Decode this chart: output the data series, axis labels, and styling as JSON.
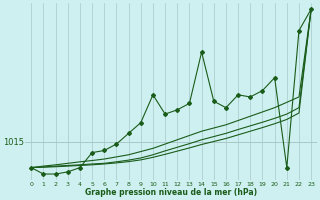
{
  "title": "Graphe pression niveau de la mer (hPa)",
  "background_color": "#cff0f0",
  "grid_color": "#a8c8c8",
  "line_color": "#1a5c1a",
  "xlim": [
    -0.5,
    23.5
  ],
  "ylim": [
    1013.2,
    1021.5
  ],
  "ytick_label": "1015",
  "ytick_value": 1015,
  "x_hourly": [
    0,
    1,
    2,
    3,
    4,
    5,
    6,
    7,
    8,
    9,
    10,
    11,
    12,
    13,
    14,
    15,
    16,
    17,
    18,
    19,
    20,
    21,
    22,
    23
  ],
  "series_main": [
    1013.8,
    1013.5,
    1013.5,
    1013.6,
    1013.8,
    1014.5,
    1014.6,
    1014.9,
    1015.4,
    1015.9,
    1017.2,
    1016.3,
    1016.5,
    1016.8,
    1019.2,
    1016.9,
    1016.6,
    1017.2,
    1017.1,
    1017.4,
    1018.0,
    1013.8,
    1020.2,
    1021.2
  ],
  "series_linear1": [
    1013.8,
    1013.87,
    1013.93,
    1014.0,
    1014.07,
    1014.13,
    1014.2,
    1014.3,
    1014.4,
    1014.55,
    1014.7,
    1014.9,
    1015.1,
    1015.3,
    1015.5,
    1015.65,
    1015.8,
    1016.0,
    1016.2,
    1016.4,
    1016.6,
    1016.85,
    1017.1,
    1021.2
  ],
  "series_linear2": [
    1013.8,
    1013.83,
    1013.87,
    1013.9,
    1013.93,
    1013.97,
    1014.0,
    1014.07,
    1014.15,
    1014.25,
    1014.4,
    1014.58,
    1014.75,
    1014.92,
    1015.1,
    1015.25,
    1015.4,
    1015.58,
    1015.75,
    1015.92,
    1016.1,
    1016.3,
    1016.6,
    1021.2
  ],
  "series_linear3": [
    1013.8,
    1013.82,
    1013.84,
    1013.87,
    1013.9,
    1013.93,
    1013.97,
    1014.02,
    1014.08,
    1014.16,
    1014.28,
    1014.42,
    1014.57,
    1014.72,
    1014.88,
    1015.02,
    1015.16,
    1015.33,
    1015.5,
    1015.67,
    1015.85,
    1016.05,
    1016.35,
    1021.2
  ]
}
